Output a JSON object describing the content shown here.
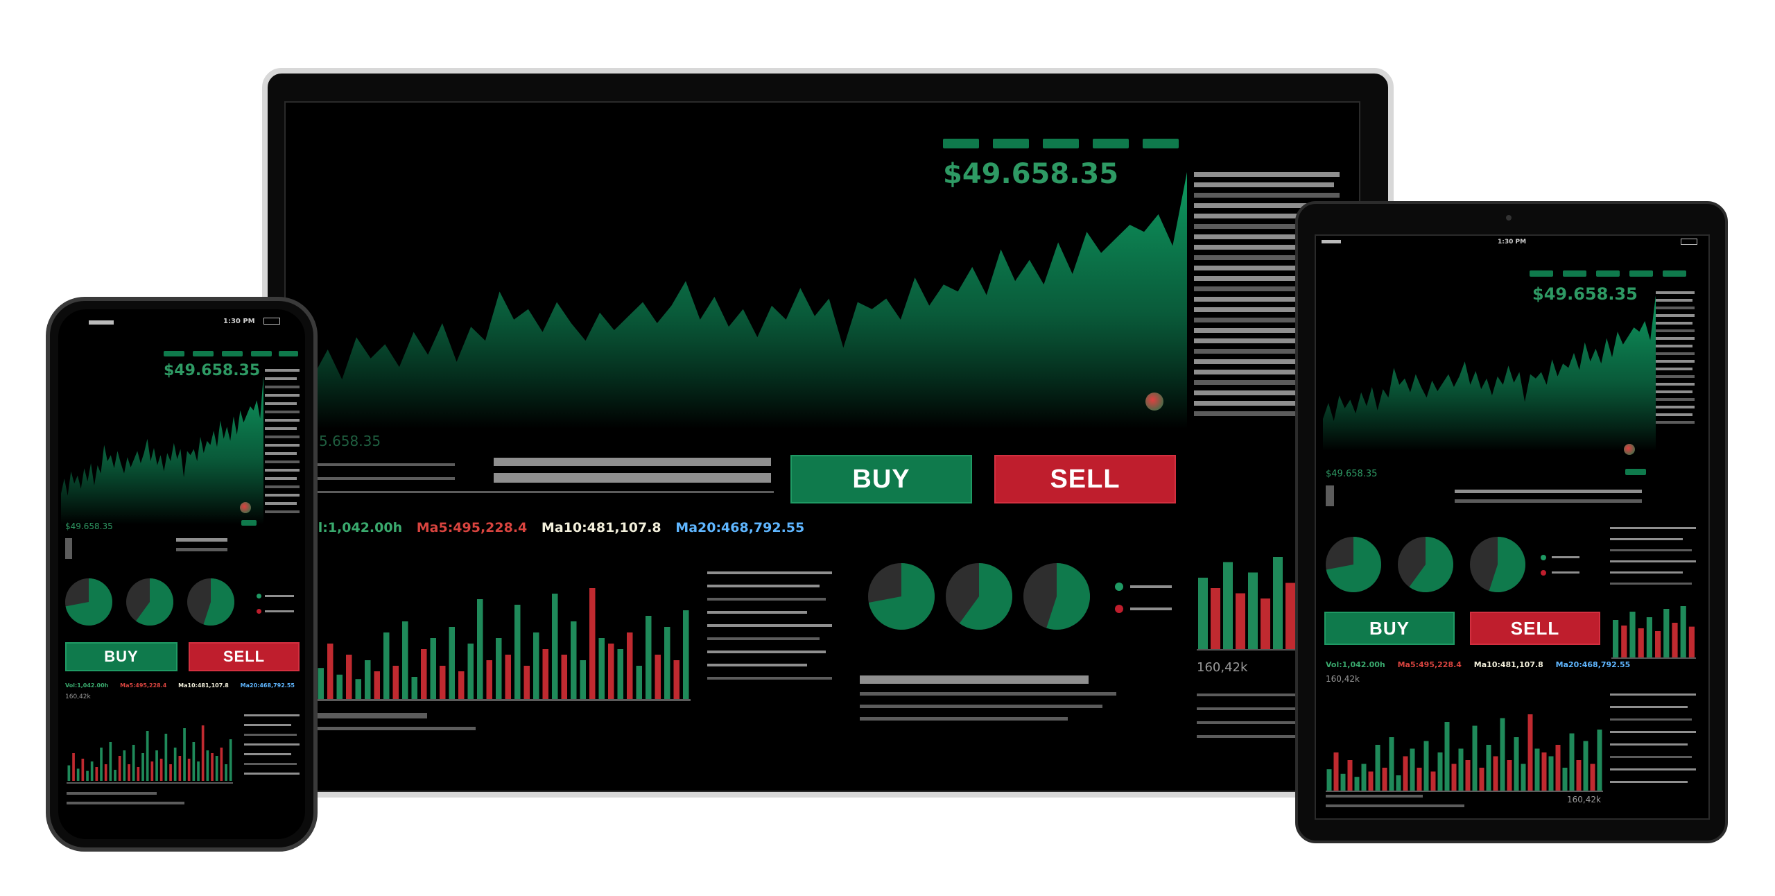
{
  "price": "$49.658.35",
  "price_small": "$49.658.35",
  "laptop_price_faded": "5.658.35",
  "buy_label": "BUY",
  "sell_label": "SELL",
  "stats": {
    "vol": "Vol:1,042.00h",
    "ma5": "Ma5:495,228.4",
    "ma10": "Ma10:481,107.8",
    "ma20": "Ma20:468,792.55"
  },
  "volume_label": "160,42k",
  "status_time": "1:30 PM",
  "colors": {
    "up": "#0f7a4c",
    "down": "#bf1e2d",
    "area": "#0e9c62",
    "ma10": "#f3f0dc",
    "ma20": "#5fb6ff"
  },
  "chart_data": {
    "type": "area",
    "series": [
      {
        "values": [
          30,
          45,
          28,
          52,
          40,
          48,
          35,
          55,
          42,
          60,
          38,
          58,
          50,
          78,
          62,
          68,
          55,
          72,
          60,
          50,
          66,
          56,
          64,
          72,
          60,
          70,
          84,
          62,
          75,
          58,
          68,
          52,
          70,
          62,
          80,
          64,
          74,
          46,
          72,
          68,
          74,
          62,
          86,
          70,
          82,
          78,
          92,
          76,
          102,
          84,
          96,
          82,
          106,
          88,
          112,
          100,
          108,
          116,
          112,
          122,
          104,
          146
        ]
      }
    ]
  },
  "volume_data": {
    "type": "bar",
    "values": [
      28,
      50,
      22,
      40,
      18,
      35,
      25,
      60,
      30,
      70,
      20,
      45,
      55,
      30,
      65,
      25,
      50,
      90,
      35,
      55,
      40,
      85,
      30,
      60,
      45,
      95,
      40,
      70,
      35,
      100,
      55,
      50,
      45,
      60,
      30,
      75,
      40,
      65,
      35,
      80
    ],
    "up": [
      true,
      false,
      true,
      false,
      true,
      true,
      false,
      true,
      false,
      true,
      true,
      false,
      true,
      false,
      true,
      false,
      true,
      true,
      false,
      true,
      false,
      true,
      false,
      true,
      false,
      true,
      false,
      true,
      true,
      false,
      true,
      false,
      true,
      false,
      true,
      true,
      false,
      true,
      false,
      true
    ]
  }
}
